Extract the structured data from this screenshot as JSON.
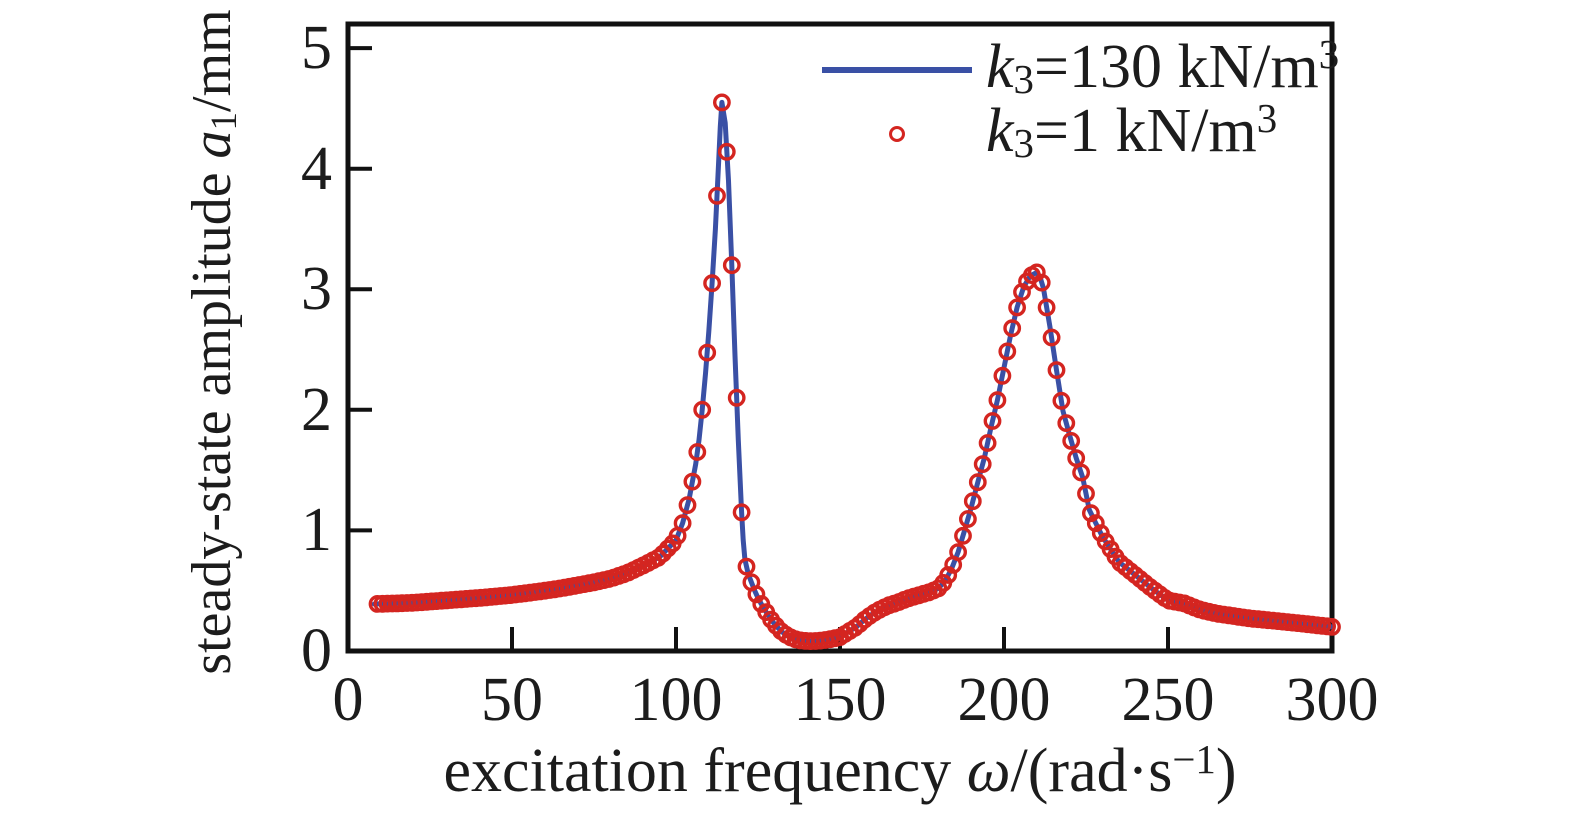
{
  "chart_data": {
    "type": "line",
    "title": "",
    "xlabel": "excitation frequency ω/(rad·s⁻¹)",
    "ylabel": "steady-state amplitude a₁/mm",
    "xlim": [
      0,
      300
    ],
    "ylim": [
      0,
      5.2
    ],
    "xticks": [
      "0",
      "50",
      "100",
      "150",
      "200",
      "250",
      "300"
    ],
    "ytick_values": [
      0,
      1,
      2,
      3,
      4,
      5
    ],
    "xtick_values": [
      0,
      50,
      100,
      150,
      200,
      250,
      300
    ],
    "yticks": [
      "0",
      "1",
      "2",
      "3",
      "4",
      "5"
    ],
    "grid": false,
    "legend_position": "inside top-right",
    "series": [
      {
        "name": "k₃=130 kN/m³",
        "type": "line",
        "color": "#3a50a5",
        "line_width": 5,
        "points": [
          [
            8,
            0.39
          ],
          [
            15,
            0.395
          ],
          [
            20,
            0.4
          ],
          [
            25,
            0.41
          ],
          [
            30,
            0.42
          ],
          [
            35,
            0.43
          ],
          [
            40,
            0.44
          ],
          [
            45,
            0.452
          ],
          [
            50,
            0.465
          ],
          [
            55,
            0.482
          ],
          [
            60,
            0.5
          ],
          [
            65,
            0.52
          ],
          [
            70,
            0.545
          ],
          [
            75,
            0.57
          ],
          [
            80,
            0.6
          ],
          [
            85,
            0.645
          ],
          [
            90,
            0.71
          ],
          [
            95,
            0.78
          ],
          [
            100,
            0.92
          ],
          [
            102,
            1.06
          ],
          [
            104,
            1.26
          ],
          [
            106,
            1.55
          ],
          [
            107,
            1.75
          ],
          [
            108,
            2.0
          ],
          [
            109,
            2.3
          ],
          [
            110,
            2.65
          ],
          [
            111,
            3.05
          ],
          [
            112,
            3.5
          ],
          [
            113,
            4.05
          ],
          [
            113.5,
            4.35
          ],
          [
            114,
            4.55
          ],
          [
            115,
            4.38
          ],
          [
            116,
            3.9
          ],
          [
            117,
            3.2
          ],
          [
            118,
            2.45
          ],
          [
            119,
            1.75
          ],
          [
            120,
            1.15
          ],
          [
            120.5,
            0.92
          ],
          [
            121,
            0.76
          ],
          [
            122,
            0.64
          ],
          [
            123,
            0.57
          ],
          [
            124,
            0.5
          ],
          [
            125,
            0.44
          ],
          [
            126,
            0.39
          ],
          [
            127,
            0.345
          ],
          [
            128,
            0.3
          ],
          [
            129,
            0.26
          ],
          [
            130,
            0.225
          ],
          [
            131,
            0.195
          ],
          [
            132,
            0.165
          ],
          [
            134,
            0.125
          ],
          [
            136,
            0.1
          ],
          [
            138,
            0.088
          ],
          [
            140,
            0.082
          ],
          [
            142,
            0.082
          ],
          [
            144,
            0.086
          ],
          [
            146,
            0.093
          ],
          [
            148,
            0.103
          ],
          [
            150,
            0.115
          ],
          [
            152,
            0.15
          ],
          [
            155,
            0.2
          ],
          [
            157.5,
            0.26
          ],
          [
            160,
            0.31
          ],
          [
            162.5,
            0.35
          ],
          [
            165,
            0.38
          ],
          [
            167.5,
            0.4
          ],
          [
            170,
            0.43
          ],
          [
            172.5,
            0.45
          ],
          [
            175,
            0.47
          ],
          [
            177.5,
            0.49
          ],
          [
            180,
            0.52
          ],
          [
            182,
            0.58
          ],
          [
            184,
            0.68
          ],
          [
            186,
            0.82
          ],
          [
            188,
            1.0
          ],
          [
            190,
            1.19
          ],
          [
            192,
            1.4
          ],
          [
            194,
            1.6
          ],
          [
            196,
            1.85
          ],
          [
            198,
            2.08
          ],
          [
            200,
            2.35
          ],
          [
            202,
            2.62
          ],
          [
            204,
            2.85
          ],
          [
            206,
            3.02
          ],
          [
            208,
            3.11
          ],
          [
            210,
            3.14
          ],
          [
            211,
            3.1
          ],
          [
            212,
            3.01
          ],
          [
            214,
            2.69
          ],
          [
            216,
            2.33
          ],
          [
            218,
            1.99
          ],
          [
            220,
            1.79
          ],
          [
            222,
            1.6
          ],
          [
            224,
            1.44
          ],
          [
            226,
            1.17
          ],
          [
            228,
            1.06
          ],
          [
            230,
            0.95
          ],
          [
            235,
            0.74
          ],
          [
            240,
            0.63
          ],
          [
            245,
            0.52
          ],
          [
            250,
            0.42
          ],
          [
            255,
            0.395
          ],
          [
            260,
            0.34
          ],
          [
            265,
            0.31
          ],
          [
            270,
            0.29
          ],
          [
            275,
            0.27
          ],
          [
            280,
            0.257
          ],
          [
            285,
            0.244
          ],
          [
            290,
            0.23
          ],
          [
            295,
            0.215
          ],
          [
            300,
            0.2
          ]
        ]
      },
      {
        "name": "k₃=1 kN/m³",
        "type": "scatter",
        "marker": "open-circle",
        "color": "#d42520",
        "marker_radius": 7.2,
        "marker_stroke": 3.4,
        "sampling": {
          "start": 9,
          "step": 1.5,
          "end": 300
        },
        "follows_series": 0
      }
    ],
    "features": {
      "peak1": {
        "omega": 114,
        "amplitude": 4.55
      },
      "peak2": {
        "omega": 210,
        "amplitude": 3.14
      },
      "antiresonance": {
        "omega": 140,
        "amplitude": 0.08
      }
    }
  },
  "labels": {
    "y": {
      "prefix": "steady-state amplitude ",
      "sym": "a",
      "sub": "1",
      "suffix": "/mm"
    },
    "x": {
      "prefix": "excitation frequency ",
      "sym": "ω",
      "mid": "/(rad·s",
      "sup": "−1",
      "suffix": ")"
    }
  },
  "legend": {
    "items": [
      {
        "sym": "k",
        "sub": "3",
        "mid": "=130 kN/m",
        "sup": "3"
      },
      {
        "sym": "k",
        "sub": "3",
        "mid": "=1 kN/m",
        "sup": "3"
      }
    ]
  },
  "colors": {
    "line": "#3a50a5",
    "marker": "#d42520",
    "axis": "#111111",
    "text": "#1c1c1c",
    "background": "#ffffff"
  }
}
